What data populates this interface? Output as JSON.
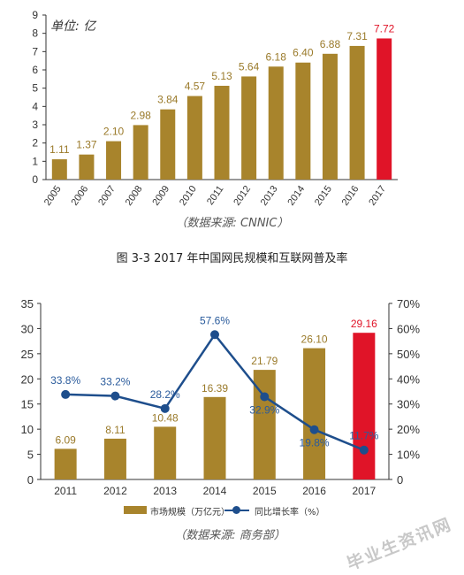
{
  "chart_data": [
    {
      "type": "bar",
      "unit_label": "单位: 亿",
      "categories": [
        "2005",
        "2006",
        "2007",
        "2008",
        "2009",
        "2010",
        "2011",
        "2012",
        "2013",
        "2014",
        "2015",
        "2016",
        "2017"
      ],
      "values": [
        1.11,
        1.37,
        2.1,
        2.98,
        3.84,
        4.57,
        5.13,
        5.64,
        6.18,
        6.4,
        6.88,
        7.31,
        7.72
      ],
      "value_labels": [
        "1.11",
        "1.37",
        "2.10",
        "2.98",
        "3.84",
        "4.57",
        "5.13",
        "5.64",
        "6.18",
        "6.40",
        "6.88",
        "7.31",
        "7.72"
      ],
      "ylim": [
        0,
        9
      ],
      "yticks": [
        "0",
        "1",
        "2",
        "3",
        "4",
        "5",
        "6",
        "7",
        "8",
        "9"
      ],
      "source": "（数据来源: CNNIC）",
      "colors": {
        "bar": "#a8842c",
        "highlight": "#e01428",
        "label": "#9a7a2a",
        "highlight_label": "#e01428"
      }
    },
    {
      "type": "bar+line",
      "categories": [
        "2011",
        "2012",
        "2013",
        "2014",
        "2015",
        "2016",
        "2017"
      ],
      "series": [
        {
          "name": "市场规模（万亿元）",
          "values": [
            6.09,
            8.11,
            10.48,
            16.39,
            21.79,
            26.1,
            29.16
          ],
          "value_labels": [
            "6.09",
            "8.11",
            "10.48",
            "16.39",
            "21.79",
            "26.10",
            "29.16"
          ],
          "axis": "left"
        },
        {
          "name": "同比增长率（%）",
          "values": [
            33.8,
            33.2,
            28.2,
            57.6,
            32.9,
            19.8,
            11.7
          ],
          "value_labels": [
            "33.8%",
            "33.2%",
            "28.2%",
            "57.6%",
            "32.9%",
            "19.8%",
            "11.7%"
          ],
          "axis": "right"
        }
      ],
      "ylim_left": [
        0,
        35
      ],
      "ylim_right": [
        0,
        70
      ],
      "yticks_left": [
        "0",
        "5",
        "10",
        "15",
        "20",
        "25",
        "30",
        "35"
      ],
      "yticks_right": [
        "0",
        "10%",
        "20%",
        "30%",
        "40%",
        "50%",
        "60%",
        "70%"
      ],
      "source": "（数据来源: 商务部）",
      "colors": {
        "bar": "#a8842c",
        "highlight": "#e01428",
        "line": "#1e4e8c",
        "label": "#9a7a2a",
        "line_label": "#2a5b9c",
        "highlight_label": "#e01428"
      }
    }
  ],
  "figure_caption": "图 3-3 2017 年中国网民规模和互联网普及率",
  "watermark": "毕业生资讯网"
}
